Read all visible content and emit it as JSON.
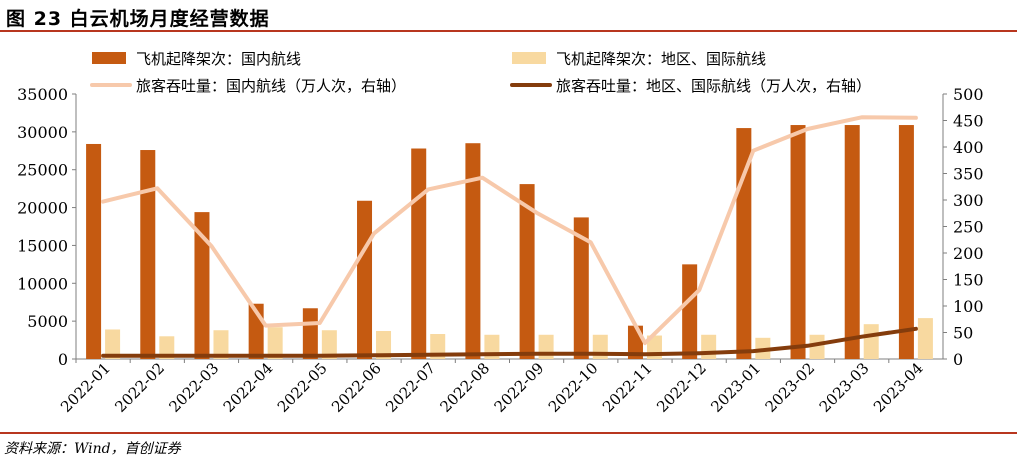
{
  "page": {
    "title": "图 23 白云机场月度经营数据",
    "source": "资料来源：Wind，首创证券"
  },
  "chart_data": {
    "type": "bar",
    "categories": [
      "2022-01",
      "2022-02",
      "2022-03",
      "2022-04",
      "2022-05",
      "2022-06",
      "2022-07",
      "2022-08",
      "2022-09",
      "2022-10",
      "2022-11",
      "2022-12",
      "2023-01",
      "2023-02",
      "2023-03",
      "2023-04"
    ],
    "series": [
      {
        "name": "飞机起降架次：国内航线",
        "type": "bar",
        "axis": "left",
        "color": "#c55a11",
        "values": [
          28400,
          27600,
          19400,
          7300,
          6700,
          20900,
          27800,
          28500,
          23100,
          18700,
          4400,
          12500,
          30500,
          30900,
          30900,
          30900
        ]
      },
      {
        "name": "飞机起降架次：地区、国际航线",
        "type": "bar",
        "axis": "left",
        "color": "#f8d9a0",
        "values": [
          3900,
          3000,
          3800,
          4200,
          3800,
          3700,
          3300,
          3200,
          3200,
          3200,
          3100,
          3200,
          2800,
          3200,
          4600,
          5400
        ]
      },
      {
        "name": "旅客吞吐量：国内航线（万人次，右轴）",
        "type": "line",
        "axis": "right",
        "color": "#f7c9ab",
        "values": [
          297,
          322,
          213,
          63,
          68,
          237,
          320,
          342,
          276,
          220,
          30,
          130,
          393,
          434,
          456,
          455
        ]
      },
      {
        "name": "旅客吞吐量：地区、国际航线（万人次，右轴）",
        "type": "line",
        "axis": "right",
        "color": "#843c0c",
        "values": [
          6,
          6,
          6,
          6,
          6,
          7,
          8,
          9,
          10,
          10,
          9,
          11,
          15,
          25,
          42,
          57
        ]
      }
    ],
    "left_axis": {
      "ylim": [
        0,
        35000
      ],
      "ticks": [
        "0",
        "5000",
        "10000",
        "15000",
        "20000",
        "25000",
        "30000",
        "35000"
      ]
    },
    "right_axis": {
      "ylim": [
        0,
        500
      ],
      "ticks": [
        "0",
        "50",
        "100",
        "150",
        "200",
        "250",
        "300",
        "350",
        "400",
        "450",
        "500"
      ]
    },
    "legend_position": "top",
    "grid": false
  }
}
